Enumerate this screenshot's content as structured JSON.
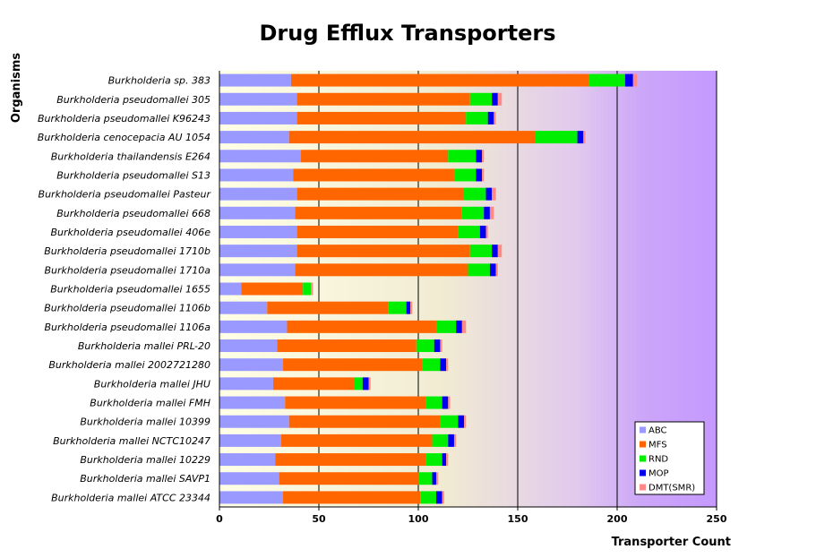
{
  "chart_data": {
    "type": "bar",
    "orientation": "horizontal",
    "stacked": true,
    "title": "Drug Efflux Transporters",
    "xlabel": "Transporter Count",
    "ylabel": "Organisms",
    "xlim": [
      0,
      250
    ],
    "xticks": [
      "0",
      "50",
      "100",
      "150",
      "200",
      "250"
    ],
    "grid": "vertical",
    "legend_position": "bottom-right",
    "categories": [
      "Burkholderia sp. 383",
      "Burkholderia pseudomallei 305",
      "Burkholderia pseudomallei K96243",
      "Burkholderia cenocepacia AU 1054",
      "Burkholderia thailandensis E264",
      "Burkholderia pseudomallei S13",
      "Burkholderia pseudomallei Pasteur",
      "Burkholderia pseudomallei 668",
      "Burkholderia pseudomallei 406e",
      "Burkholderia pseudomallei 1710b",
      "Burkholderia pseudomallei 1710a",
      "Burkholderia pseudomallei 1655",
      "Burkholderia pseudomallei 1106b",
      "Burkholderia pseudomallei 1106a",
      "Burkholderia mallei PRL-20",
      "Burkholderia mallei 2002721280",
      "Burkholderia mallei JHU",
      "Burkholderia mallei FMH",
      "Burkholderia mallei 10399",
      "Burkholderia mallei NCTC10247",
      "Burkholderia mallei 10229",
      "Burkholderia mallei SAVP1",
      "Burkholderia mallei ATCC 23344"
    ],
    "series": [
      {
        "name": "ABC",
        "color": "#9999ff",
        "values": [
          36,
          39,
          39,
          35,
          41,
          37,
          39,
          38,
          39,
          39,
          38,
          11,
          24,
          34,
          29,
          32,
          27,
          33,
          35,
          31,
          28,
          30,
          32
        ]
      },
      {
        "name": "MFS",
        "color": "#ff6600",
        "values": [
          150,
          87,
          85,
          124,
          74,
          81,
          84,
          84,
          81,
          87,
          87,
          31,
          61,
          75,
          70,
          70,
          41,
          71,
          76,
          76,
          76,
          70,
          69
        ]
      },
      {
        "name": "RND",
        "color": "#00ee00",
        "values": [
          18,
          11,
          11,
          21,
          14,
          11,
          11,
          11,
          11,
          11,
          11,
          4,
          9,
          10,
          9,
          9,
          4,
          8,
          9,
          8,
          8,
          7,
          8
        ]
      },
      {
        "name": "MOP",
        "color": "#0000ee",
        "values": [
          4,
          3,
          3,
          3,
          3,
          3,
          3,
          3,
          3,
          3,
          3,
          0,
          2,
          3,
          3,
          3,
          3,
          3,
          3,
          3,
          2,
          2,
          3
        ]
      },
      {
        "name": "DMT(SMR)",
        "color": "#ff8888",
        "values": [
          2,
          2,
          1,
          1,
          1,
          1,
          2,
          2,
          1,
          2,
          1,
          1,
          1,
          2,
          1,
          1,
          1,
          1,
          1,
          1,
          1,
          1,
          1
        ]
      }
    ]
  }
}
